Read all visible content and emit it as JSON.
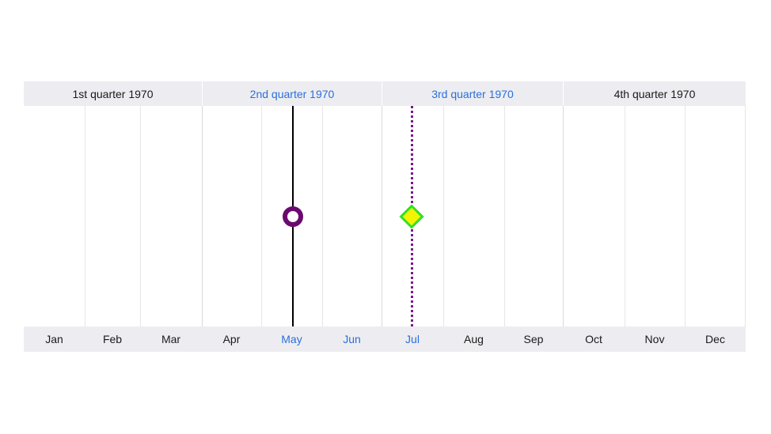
{
  "quarters": [
    {
      "label": "1st quarter 1970",
      "highlight": false
    },
    {
      "label": "2nd quarter 1970",
      "highlight": true
    },
    {
      "label": "3rd quarter 1970",
      "highlight": true
    },
    {
      "label": "4th quarter 1970",
      "highlight": false
    }
  ],
  "months": [
    {
      "label": "Jan",
      "highlight": false
    },
    {
      "label": "Feb",
      "highlight": false
    },
    {
      "label": "Mar",
      "highlight": false
    },
    {
      "label": "Apr",
      "highlight": false
    },
    {
      "label": "May",
      "highlight": true
    },
    {
      "label": "Jun",
      "highlight": true
    },
    {
      "label": "Jul",
      "highlight": true
    },
    {
      "label": "Aug",
      "highlight": false
    },
    {
      "label": "Sep",
      "highlight": false
    },
    {
      "label": "Oct",
      "highlight": false
    },
    {
      "label": "Nov",
      "highlight": false
    },
    {
      "label": "Dec",
      "highlight": false
    }
  ],
  "markers": [
    {
      "shape": "circle",
      "line": "solid",
      "month": "May",
      "line_color": "#000000",
      "fill": "#ffffff",
      "stroke": "#6b0a6e"
    },
    {
      "shape": "diamond",
      "line": "dotted",
      "month": "Jul",
      "line_color": "#7a1a8c",
      "fill": "#f4f400",
      "stroke": "#2ee02e"
    }
  ],
  "colors": {
    "highlight_text": "#2a6fdb",
    "header_bg": "#ededf1"
  }
}
